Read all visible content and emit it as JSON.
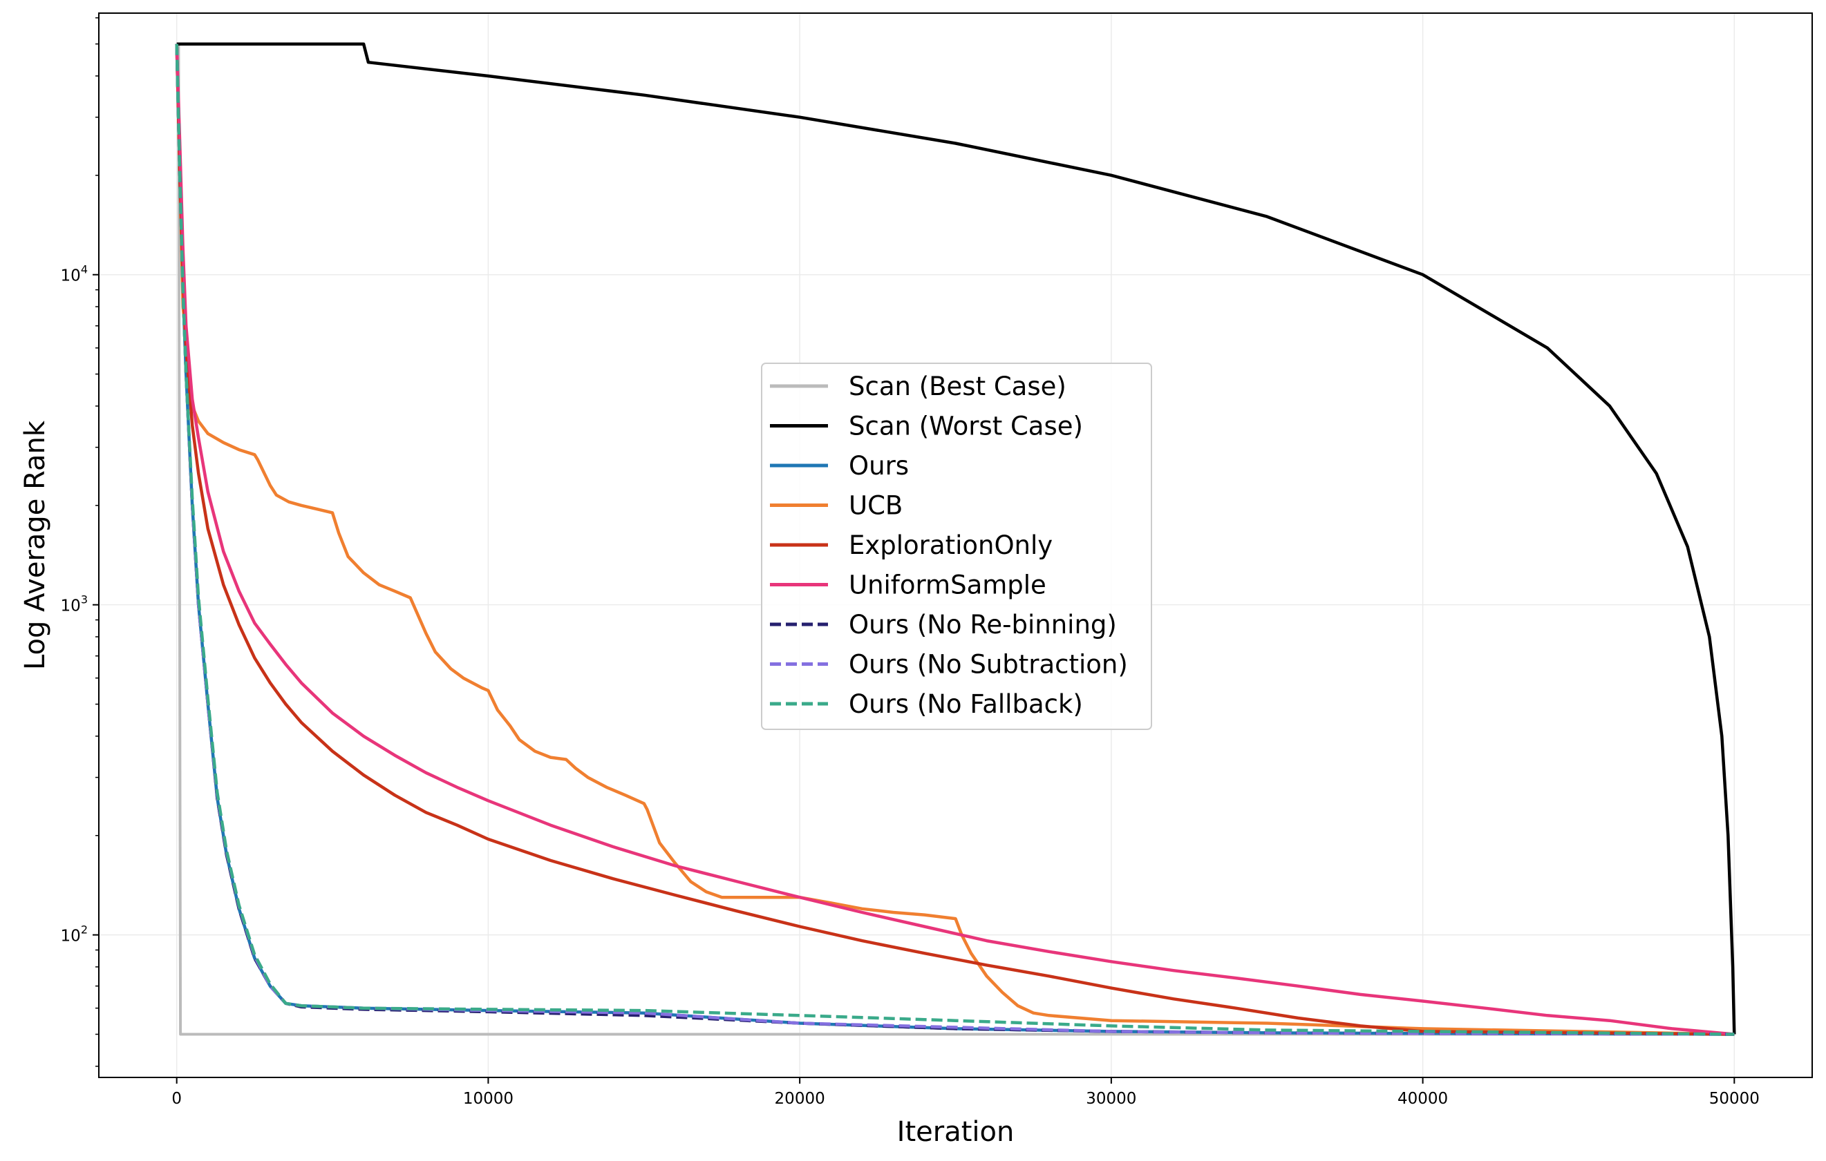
{
  "chart_data": {
    "type": "line",
    "title": "",
    "xlabel": "Iteration",
    "ylabel": "Log Average Rank",
    "xlim": [
      -2500,
      52500
    ],
    "ylim": [
      37,
      62000
    ],
    "yscale": "log",
    "grid": true,
    "legend_position": "center",
    "x_ticks": [
      {
        "value": 0,
        "label": "0"
      },
      {
        "value": 10000,
        "label": "10000"
      },
      {
        "value": 20000,
        "label": "20000"
      },
      {
        "value": 30000,
        "label": "30000"
      },
      {
        "value": 40000,
        "label": "40000"
      },
      {
        "value": 50000,
        "label": "50000"
      }
    ],
    "y_ticks": [
      {
        "value": 100,
        "base": "10",
        "exp": "2"
      },
      {
        "value": 1000,
        "base": "10",
        "exp": "3"
      },
      {
        "value": 10000,
        "base": "10",
        "exp": "4"
      }
    ],
    "series": [
      {
        "name": "Scan (Best Case)",
        "color": "#bbbbbb",
        "dash": "solid",
        "x": [
          0,
          60,
          120,
          50000
        ],
        "y": [
          50000,
          50000,
          50,
          50
        ]
      },
      {
        "name": "Scan (Worst Case)",
        "color": "#000000",
        "dash": "solid",
        "x": [
          0,
          6000,
          6150,
          10000,
          15000,
          20000,
          25000,
          30000,
          35000,
          40000,
          44000,
          46000,
          47500,
          48500,
          49200,
          49600,
          49800,
          49950,
          50000
        ],
        "y": [
          50000,
          50000,
          44000,
          40000,
          35000,
          30000,
          25000,
          20000,
          15000,
          10000,
          6000,
          4000,
          2500,
          1500,
          800,
          400,
          200,
          80,
          50
        ]
      },
      {
        "name": "Ours",
        "color": "#1f77b4",
        "dash": "solid",
        "x": [
          0,
          100,
          200,
          300,
          500,
          700,
          1000,
          1300,
          1600,
          2000,
          2500,
          3000,
          3500,
          4000,
          6000,
          10000,
          15000,
          20000,
          25000,
          30000,
          35000,
          40000,
          45000,
          50000
        ],
        "y": [
          50000,
          20000,
          9000,
          5000,
          2000,
          1000,
          500,
          260,
          175,
          120,
          85,
          70,
          62,
          61,
          60,
          59,
          58,
          54,
          52,
          51,
          50.5,
          50.3,
          50.2,
          50
        ]
      },
      {
        "name": "UCB",
        "color": "#f07f30",
        "dash": "solid",
        "x": [
          0,
          200,
          500,
          700,
          1000,
          1500,
          2000,
          2500,
          2600,
          3000,
          3200,
          3600,
          4000,
          4500,
          5000,
          5200,
          5500,
          6000,
          6500,
          7000,
          7500,
          7600,
          8000,
          8300,
          8800,
          9200,
          9800,
          10000,
          10300,
          10700,
          11000,
          11500,
          12000,
          12500,
          12800,
          13200,
          13800,
          14400,
          15000,
          15100,
          15500,
          16000,
          16500,
          17000,
          17500,
          18000,
          19000,
          20000,
          21000,
          22000,
          23000,
          24000,
          25000,
          25200,
          25500,
          26000,
          26500,
          27000,
          27500,
          28000,
          30000,
          35000,
          40000,
          45000,
          50000
        ],
        "y": [
          50000,
          8000,
          4000,
          3600,
          3300,
          3100,
          2950,
          2850,
          2750,
          2300,
          2150,
          2050,
          2000,
          1950,
          1900,
          1650,
          1400,
          1250,
          1150,
          1100,
          1050,
          1000,
          820,
          720,
          640,
          600,
          560,
          550,
          480,
          430,
          390,
          360,
          345,
          340,
          320,
          300,
          280,
          265,
          250,
          240,
          190,
          165,
          145,
          135,
          130,
          130,
          130,
          130,
          125,
          120,
          117,
          115,
          112,
          100,
          88,
          75,
          67,
          61,
          58,
          57,
          55,
          54,
          52,
          51,
          50
        ]
      },
      {
        "name": "ExplorationOnly",
        "color": "#c83218",
        "dash": "solid",
        "x": [
          0,
          100,
          200,
          300,
          500,
          700,
          1000,
          1500,
          2000,
          2500,
          3000,
          3500,
          4000,
          5000,
          6000,
          7000,
          8000,
          9000,
          10000,
          12000,
          14000,
          16000,
          18000,
          20000,
          22000,
          24000,
          26000,
          28000,
          30000,
          32000,
          34000,
          36000,
          38000,
          40000,
          45000,
          50000
        ],
        "y": [
          50000,
          20000,
          10000,
          6000,
          3500,
          2500,
          1700,
          1150,
          870,
          690,
          580,
          500,
          440,
          360,
          305,
          265,
          235,
          215,
          195,
          168,
          148,
          132,
          118,
          106,
          96,
          88,
          81,
          75,
          69,
          64,
          60,
          56,
          53,
          51,
          50.5,
          50
        ]
      },
      {
        "name": "UniformSample",
        "color": "#e8357a",
        "dash": "solid",
        "x": [
          0,
          100,
          200,
          300,
          500,
          700,
          1000,
          1500,
          2000,
          2500,
          3000,
          3500,
          4000,
          5000,
          6000,
          7000,
          8000,
          9000,
          10000,
          12000,
          14000,
          16000,
          18000,
          20000,
          22000,
          24000,
          26000,
          28000,
          30000,
          32000,
          34000,
          36000,
          38000,
          40000,
          42000,
          44000,
          46000,
          48000,
          50000
        ],
        "y": [
          50000,
          25000,
          12000,
          7000,
          4200,
          3200,
          2200,
          1450,
          1100,
          880,
          760,
          660,
          580,
          470,
          400,
          350,
          310,
          280,
          255,
          215,
          185,
          162,
          145,
          130,
          117,
          106,
          96,
          89,
          83,
          78,
          74,
          70,
          66,
          63,
          60,
          57,
          55,
          52,
          50
        ]
      },
      {
        "name": "Ours (No Re-binning)",
        "color": "#26206f",
        "dash": "dashed",
        "x": [
          0,
          100,
          200,
          300,
          500,
          700,
          1000,
          1300,
          1600,
          2000,
          2500,
          3000,
          3500,
          4000,
          6000,
          10000,
          15000,
          20000,
          25000,
          30000,
          35000,
          40000,
          45000,
          50000
        ],
        "y": [
          50000,
          20000,
          9000,
          5000,
          2000,
          1000,
          500,
          260,
          175,
          120,
          85,
          70,
          62,
          60.5,
          59.5,
          58.5,
          57,
          54,
          52,
          51,
          50.5,
          50.3,
          50.2,
          50
        ]
      },
      {
        "name": "Ours (No Subtraction)",
        "color": "#8470e0",
        "dash": "dashed",
        "x": [
          0,
          100,
          200,
          300,
          500,
          700,
          1000,
          1300,
          1600,
          2000,
          2500,
          3000,
          3500,
          4000,
          6000,
          10000,
          15000,
          20000,
          25000,
          30000,
          35000,
          40000,
          45000,
          50000
        ],
        "y": [
          50000,
          20000,
          9000,
          5000,
          2000,
          1000,
          500,
          265,
          178,
          122,
          86,
          70,
          62,
          61,
          60,
          59,
          58,
          54,
          52.5,
          51,
          50.5,
          50.3,
          50.2,
          50
        ]
      },
      {
        "name": "Ours (No Fallback)",
        "color": "#3aaa8a",
        "dash": "dashed",
        "x": [
          0,
          100,
          200,
          300,
          500,
          700,
          1000,
          1300,
          1600,
          2000,
          2500,
          3000,
          3500,
          4000,
          6000,
          10000,
          15000,
          20000,
          25000,
          30000,
          35000,
          40000,
          45000,
          50000
        ],
        "y": [
          50000,
          20000,
          9000,
          5000,
          2100,
          1050,
          520,
          270,
          180,
          123,
          87,
          71,
          62,
          61,
          60,
          59.5,
          59,
          57,
          55,
          53,
          51.5,
          51,
          50.5,
          50
        ]
      }
    ]
  }
}
